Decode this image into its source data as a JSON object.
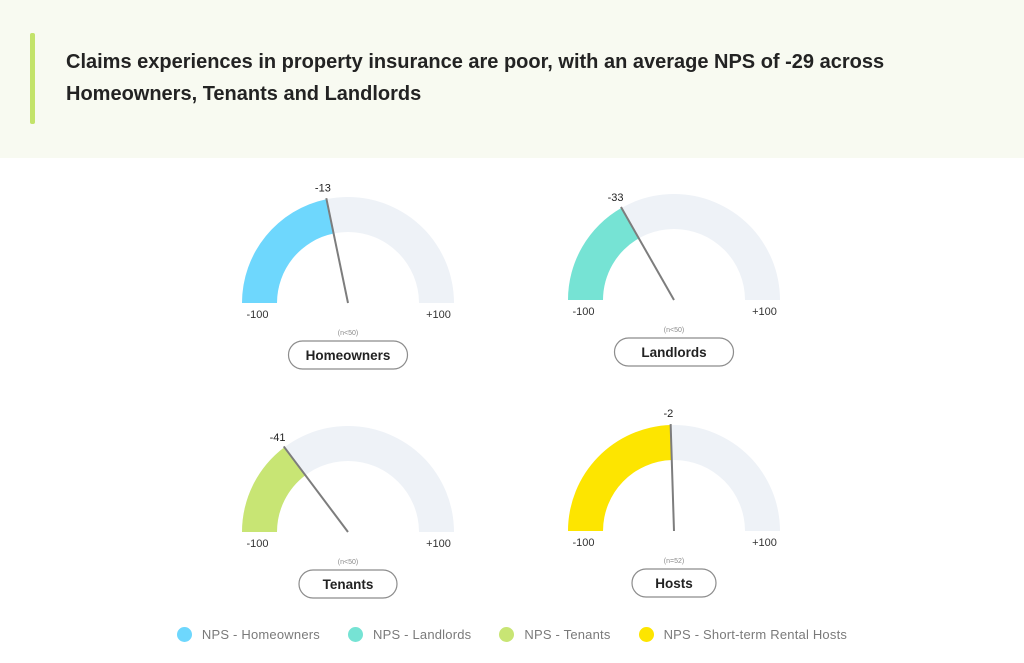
{
  "header": {
    "title": "Claims experiences in property insurance are poor, with an average NPS of -29 across Homeowners, Tenants and Landlords"
  },
  "chart_data": [
    {
      "type": "gauge",
      "segment": "Homeowners",
      "value": -13,
      "min": -100,
      "max": 100,
      "min_label": "-100",
      "max_label": "+100",
      "sample": "(n<50)",
      "value_label": "-13",
      "color": "#6ed7fd"
    },
    {
      "type": "gauge",
      "segment": "Landlords",
      "value": -33,
      "min": -100,
      "max": 100,
      "min_label": "-100",
      "max_label": "+100",
      "sample": "(n<50)",
      "value_label": "-33",
      "color": "#76e3d4"
    },
    {
      "type": "gauge",
      "segment": "Tenants",
      "value": -41,
      "min": -100,
      "max": 100,
      "min_label": "-100",
      "max_label": "+100",
      "sample": "(n<50)",
      "value_label": "-41",
      "color": "#c8e574"
    },
    {
      "type": "gauge",
      "segment": "Hosts",
      "value": -2,
      "min": -100,
      "max": 100,
      "min_label": "-100",
      "max_label": "+100",
      "sample": "(n=52)",
      "value_label": "-2",
      "color": "#fde500"
    }
  ],
  "colors": {
    "track": "#eef2f7",
    "needle": "#7d7d7d",
    "header_accent": "#c3e36a",
    "header_bg": "#f8faf1"
  },
  "legend": [
    {
      "label": "NPS - Homeowners",
      "color": "#6ed7fd"
    },
    {
      "label": "NPS - Landlords",
      "color": "#76e3d4"
    },
    {
      "label": "NPS - Tenants",
      "color": "#c8e574"
    },
    {
      "label": "NPS - Short-term Rental Hosts",
      "color": "#fde500"
    }
  ]
}
